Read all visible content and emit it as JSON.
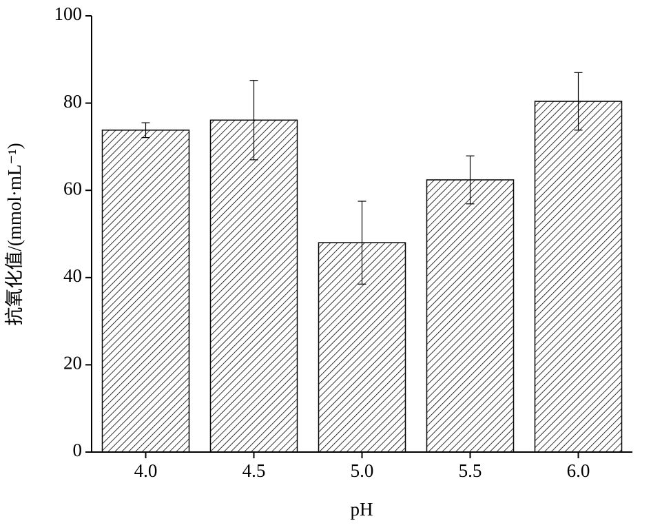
{
  "chart_data": {
    "type": "bar",
    "x_label": "pH",
    "y_label": "抗氧化值/(mmol·mL⁻¹)",
    "categories": [
      "4.0",
      "4.5",
      "5.0",
      "5.5",
      "6.0"
    ],
    "values": [
      73.8,
      76.1,
      48.0,
      62.4,
      80.4
    ],
    "errors": [
      1.7,
      9.1,
      9.5,
      5.5,
      6.6
    ],
    "color": "#000000",
    "ylim": [
      0,
      100
    ],
    "yticks": [
      0,
      20,
      40,
      60,
      80,
      100
    ]
  }
}
